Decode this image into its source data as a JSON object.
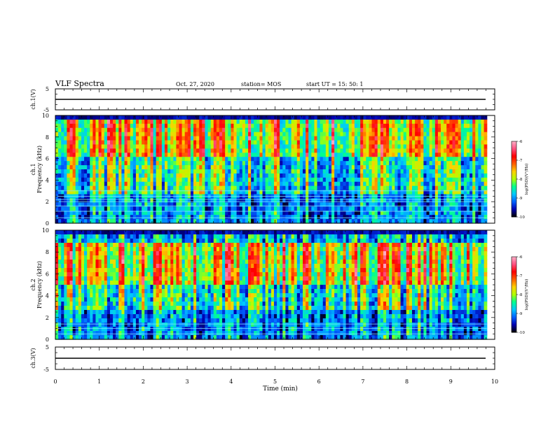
{
  "header": {
    "title": "VLF Spectra",
    "date": "Oct. 27, 2020",
    "station": "station= MOS",
    "start": "start  UT =   15: 50: 1"
  },
  "chart_data": [
    {
      "type": "line",
      "name": "ch1-waveform",
      "ylabel": "ch.1(V)",
      "ylim": [
        -5,
        5
      ],
      "yticks": [
        "5",
        "-5"
      ],
      "series": [
        {
          "name": "",
          "x": [
            0,
            9.8
          ],
          "y": [
            0,
            0
          ]
        }
      ]
    },
    {
      "type": "heatmap",
      "name": "ch1-spectrogram",
      "ylabel": "ch.1\nFrequency  (kHz)",
      "ylim": [
        0,
        10
      ],
      "yticks": [
        "0",
        "2",
        "4",
        "6",
        "8",
        "10"
      ],
      "xlim": [
        0,
        9.8
      ],
      "colorbar": {
        "label": "log(PSD)(V²/Hz)",
        "ticks": [
          "-6",
          "-7",
          "-8",
          "-9",
          "-10"
        ],
        "range": [
          -10,
          -6
        ]
      },
      "dominant_band_khz": [
        6,
        9.5
      ],
      "persistent_lines_khz": [
        0.5,
        1.1,
        1.6,
        2.0,
        2.2,
        2.5,
        3.0
      ]
    },
    {
      "type": "heatmap",
      "name": "ch2-spectrogram",
      "ylabel": "ch.2\nFrequency  (kHz)",
      "ylim": [
        0,
        10
      ],
      "yticks": [
        "0",
        "2",
        "4",
        "6",
        "8",
        "10"
      ],
      "xlim": [
        0,
        9.8
      ],
      "colorbar": {
        "label": "log(PSD)(V²/Hz)",
        "ticks": [
          "-6",
          "-7",
          "-8",
          "-9",
          "-10"
        ],
        "range": [
          -10,
          -6
        ]
      },
      "dominant_band_khz": [
        5,
        9
      ],
      "persistent_lines_khz": [
        0.5,
        1.0,
        1.4
      ]
    },
    {
      "type": "line",
      "name": "ch3-waveform",
      "ylabel": "ch.3(V)",
      "ylim": [
        -5,
        5
      ],
      "yticks": [
        "5",
        "-5"
      ],
      "series": [
        {
          "name": "",
          "x": [
            0,
            9.8
          ],
          "y": [
            0,
            0
          ]
        }
      ]
    }
  ],
  "xaxis": {
    "label": "Time  (min)",
    "ticks": [
      "0",
      "1",
      "2",
      "3",
      "4",
      "5",
      "6",
      "7",
      "8",
      "9",
      "10"
    ],
    "xlim": [
      0,
      10
    ]
  },
  "colors": {
    "scale": [
      "#000000",
      "#0000b0",
      "#0060ff",
      "#00c8ff",
      "#00ff90",
      "#b0ff00",
      "#ffd000",
      "#ff6000",
      "#ff0000",
      "#ff5080",
      "#ffb0c8"
    ]
  }
}
